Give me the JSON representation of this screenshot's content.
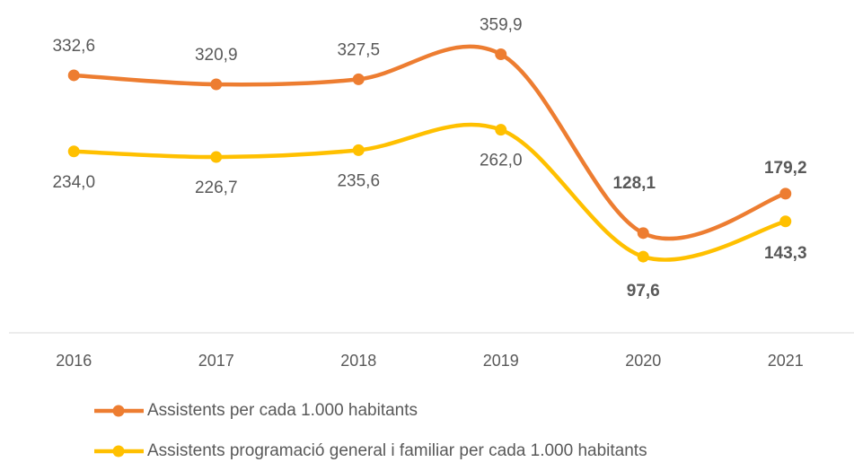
{
  "chart_data": {
    "type": "line",
    "categories": [
      "2016",
      "2017",
      "2018",
      "2019",
      "2020",
      "2021"
    ],
    "ylim": [
      0,
      400
    ],
    "legend": "bottom",
    "series": [
      {
        "name": "Assistents per cada 1.000 habitants",
        "color": "#ed7d31",
        "values": [
          332.6,
          320.9,
          327.5,
          359.9,
          128.1,
          179.2
        ],
        "value_labels": [
          "332,6",
          "320,9",
          "327,5",
          "359,9",
          "128,1",
          "179,2"
        ]
      },
      {
        "name": "Assistents programació general i familiar per cada 1.000 habitants",
        "color": "#ffc000",
        "values": [
          234.0,
          226.7,
          235.6,
          262.0,
          97.6,
          143.3
        ],
        "value_labels": [
          "234,0",
          "226,7",
          "235,6",
          "262,0",
          "97,6",
          "143,3"
        ]
      }
    ]
  }
}
